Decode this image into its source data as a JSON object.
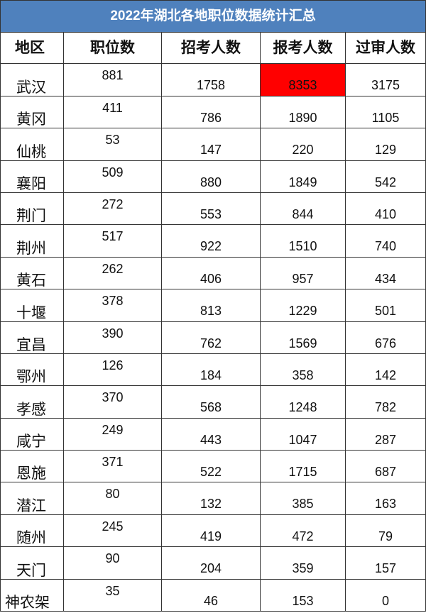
{
  "title": "2022年湖北各地职位数据统计汇总",
  "highlight_color": "#ff0000",
  "header_color": "#4f81bd",
  "columns": [
    "地区",
    "职位数",
    "招考人数",
    "报考人数",
    "过审人数"
  ],
  "rows": [
    [
      "武汉",
      "881",
      "1758",
      "8353",
      "3175"
    ],
    [
      "黄冈",
      "411",
      "786",
      "1890",
      "1105"
    ],
    [
      "仙桃",
      "53",
      "147",
      "220",
      "129"
    ],
    [
      "襄阳",
      "509",
      "880",
      "1849",
      "542"
    ],
    [
      "荆门",
      "272",
      "553",
      "844",
      "410"
    ],
    [
      "荆州",
      "517",
      "922",
      "1510",
      "740"
    ],
    [
      "黄石",
      "262",
      "406",
      "957",
      "434"
    ],
    [
      "十堰",
      "378",
      "813",
      "1229",
      "501"
    ],
    [
      "宜昌",
      "390",
      "762",
      "1569",
      "676"
    ],
    [
      "鄂州",
      "126",
      "184",
      "358",
      "142"
    ],
    [
      "孝感",
      "370",
      "568",
      "1248",
      "782"
    ],
    [
      "咸宁",
      "249",
      "443",
      "1047",
      "287"
    ],
    [
      "恩施",
      "371",
      "522",
      "1715",
      "687"
    ],
    [
      "潜江",
      "80",
      "132",
      "385",
      "163"
    ],
    [
      "随州",
      "245",
      "419",
      "472",
      "79"
    ],
    [
      "天门",
      "90",
      "204",
      "359",
      "157"
    ],
    [
      "神农架",
      "35",
      "46",
      "153",
      "0"
    ]
  ]
}
